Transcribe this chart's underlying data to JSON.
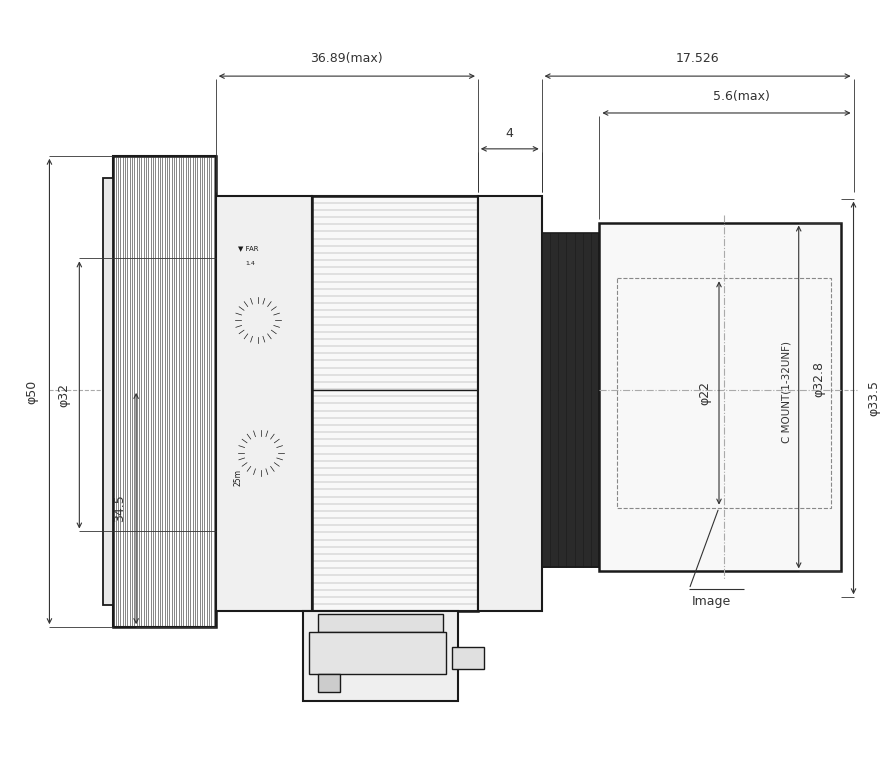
{
  "bg_color": "#ffffff",
  "line_color": "#1a1a1a",
  "dim_color": "#333333",
  "fig_width": 8.92,
  "fig_height": 7.65,
  "dimensions": {
    "total_length_label": "36.89(max)",
    "right_section_label": "17.526",
    "small_width_label": "4",
    "flange_label": "5.6(max)",
    "phi50_label": "φ50",
    "phi32_label": "φ32",
    "phi22_label": "φ22",
    "phi328_label": "φ32.8",
    "phi335_label": "φ33.5",
    "height345_label": "34.5",
    "cmount_label": "C MOUNT(1-32UNF)",
    "image_label": "Image"
  }
}
